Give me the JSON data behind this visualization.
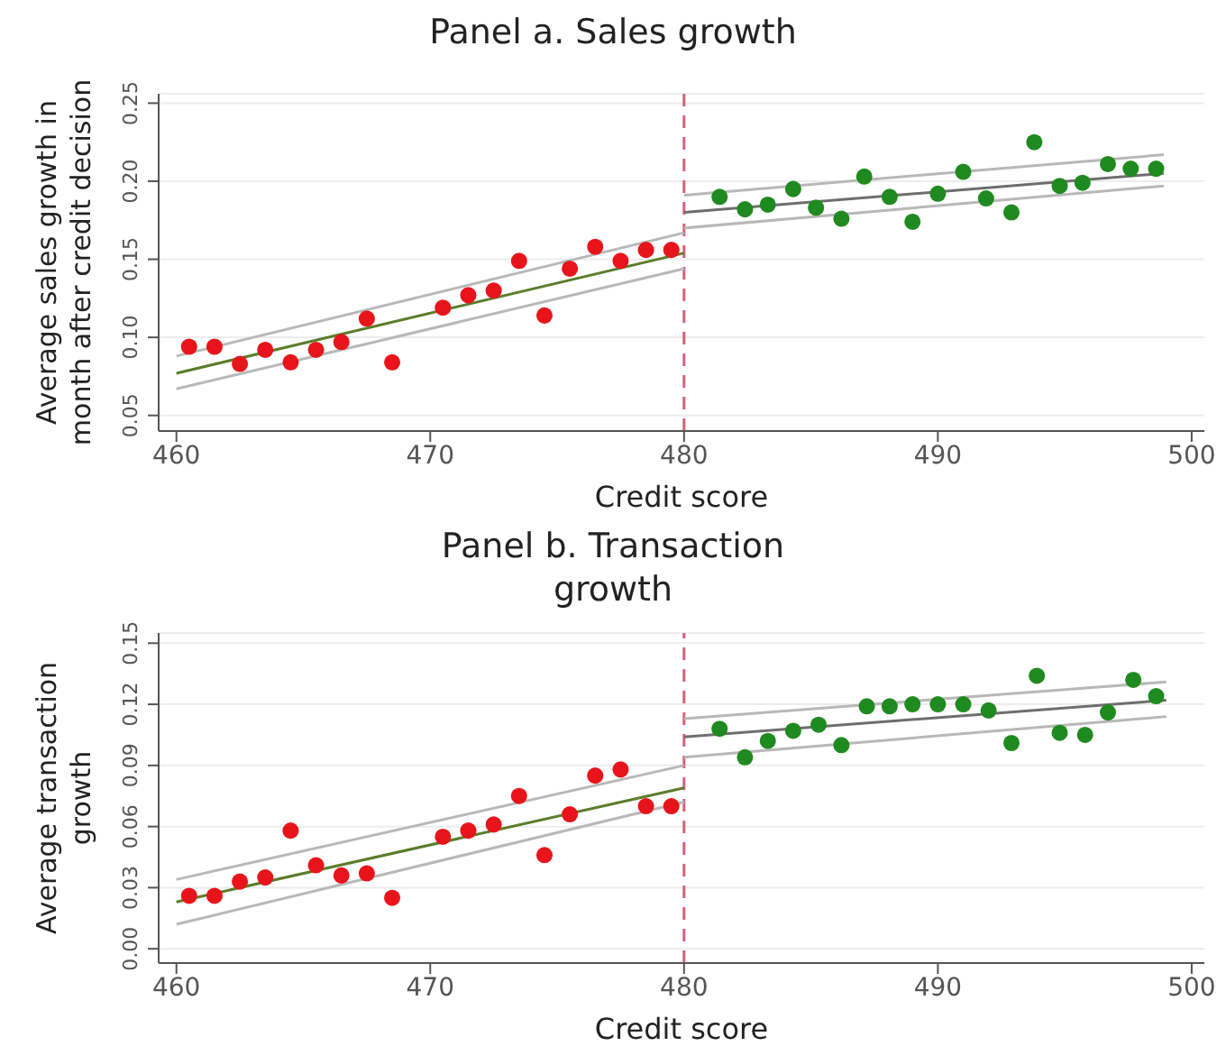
{
  "chart_data": [
    {
      "type": "scatter",
      "title": "Panel a. Sales growth",
      "xlabel": "Credit score",
      "ylabel": "Average sales growth in month after credit decision",
      "xlim": [
        459.3,
        500.5
      ],
      "xticks": [
        460,
        470,
        480,
        490,
        500
      ],
      "ylim": [
        0.04,
        0.256
      ],
      "yticks": [
        {
          "value": 0.05,
          "label": "0.05"
        },
        {
          "value": 0.1,
          "label": "0.10"
        },
        {
          "value": 0.15,
          "label": "0.15"
        },
        {
          "value": 0.2,
          "label": "0.20"
        },
        {
          "value": 0.25,
          "label": "0.25"
        }
      ],
      "grid": "y",
      "legend": false,
      "marker": "circle",
      "series": [
        {
          "color": "#e8141c",
          "x": [
            460.5,
            461.5,
            462.5,
            463.5,
            464.5,
            465.5,
            466.5,
            467.5,
            468.5,
            470.5,
            471.5,
            472.5,
            473.5,
            474.5,
            475.5,
            476.5,
            477.5,
            478.5,
            479.5
          ],
          "values": [
            0.094,
            0.094,
            0.083,
            0.092,
            0.084,
            0.092,
            0.097,
            0.112,
            0.084,
            0.119,
            0.127,
            0.13,
            0.149,
            0.114,
            0.144,
            0.158,
            0.149,
            0.156,
            0.156
          ]
        },
        {
          "color": "#1f8a1f",
          "x": [
            481.4,
            482.4,
            483.3,
            484.3,
            485.2,
            486.2,
            487.1,
            488.1,
            489.0,
            490.0,
            491.0,
            491.9,
            492.9,
            493.8,
            494.8,
            495.7,
            496.7,
            497.6,
            498.6
          ],
          "values": [
            0.19,
            0.182,
            0.185,
            0.195,
            0.183,
            0.176,
            0.203,
            0.19,
            0.174,
            0.192,
            0.206,
            0.189,
            0.18,
            0.225,
            0.197,
            0.199,
            0.211,
            0.208,
            0.208
          ]
        },
        {
          "type": "line",
          "marker": "none",
          "color": "#5a7d2a",
          "x": [
            460,
            480
          ],
          "values": [
            0.077,
            0.154
          ]
        },
        {
          "type": "line",
          "marker": "none",
          "color": "#b8b8b8",
          "x": [
            460,
            480
          ],
          "values": [
            0.088,
            0.167
          ]
        },
        {
          "type": "line",
          "marker": "none",
          "color": "#b8b8b8",
          "x": [
            460,
            480
          ],
          "values": [
            0.067,
            0.144
          ]
        },
        {
          "type": "line",
          "marker": "none",
          "color": "#6e6e6e",
          "x": [
            480,
            498.9
          ],
          "values": [
            0.18,
            0.205
          ]
        },
        {
          "type": "line",
          "marker": "none",
          "color": "#b8b8b8",
          "x": [
            480,
            498.9
          ],
          "values": [
            0.191,
            0.217
          ]
        },
        {
          "type": "line",
          "marker": "none",
          "color": "#b8b8b8",
          "x": [
            480,
            498.9
          ],
          "values": [
            0.17,
            0.197
          ]
        }
      ],
      "ref_lines": [
        {
          "axis": "x",
          "value": 480,
          "color": "#d9607a",
          "line_style": "dashed"
        }
      ]
    },
    {
      "type": "scatter",
      "title": "Panel b. Transaction growth",
      "xlabel": "Credit score",
      "ylabel": "Average transaction growth",
      "xlim": [
        459.3,
        500.5
      ],
      "xticks": [
        460,
        470,
        480,
        490,
        500
      ],
      "ylim": [
        -0.007,
        0.155
      ],
      "yticks": [
        {
          "value": 0,
          "label": "0.00"
        },
        {
          "value": 0.03,
          "label": "0.03"
        },
        {
          "value": 0.06,
          "label": "0.06"
        },
        {
          "value": 0.09,
          "label": "0.09"
        },
        {
          "value": 0.12,
          "label": "0.12"
        },
        {
          "value": 0.15,
          "label": "0.15"
        }
      ],
      "grid": "y",
      "legend": false,
      "marker": "circle",
      "series": [
        {
          "color": "#e8141c",
          "x": [
            460.5,
            461.5,
            462.5,
            463.5,
            464.5,
            465.5,
            466.5,
            467.5,
            468.5,
            470.5,
            471.5,
            472.5,
            473.5,
            474.5,
            475.5,
            476.5,
            477.5,
            478.5,
            479.5
          ],
          "values": [
            0.026,
            0.026,
            0.033,
            0.035,
            0.058,
            0.041,
            0.036,
            0.037,
            0.025,
            0.055,
            0.058,
            0.061,
            0.075,
            0.046,
            0.066,
            0.085,
            0.088,
            0.07,
            0.07
          ]
        },
        {
          "color": "#1f8a1f",
          "x": [
            481.4,
            482.4,
            483.3,
            484.3,
            485.3,
            486.2,
            487.2,
            488.1,
            489.0,
            490.0,
            491.0,
            492.0,
            492.9,
            493.9,
            494.8,
            495.8,
            496.7,
            497.7,
            498.6
          ],
          "values": [
            0.108,
            0.094,
            0.102,
            0.107,
            0.11,
            0.1,
            0.119,
            0.119,
            0.12,
            0.12,
            0.12,
            0.117,
            0.101,
            0.134,
            0.106,
            0.105,
            0.116,
            0.132,
            0.124
          ]
        },
        {
          "type": "line",
          "marker": "none",
          "color": "#5a7d2a",
          "x": [
            460,
            480
          ],
          "values": [
            0.023,
            0.079
          ]
        },
        {
          "type": "line",
          "marker": "none",
          "color": "#b8b8b8",
          "x": [
            460,
            480
          ],
          "values": [
            0.034,
            0.09
          ]
        },
        {
          "type": "line",
          "marker": "none",
          "color": "#b8b8b8",
          "x": [
            460,
            480
          ],
          "values": [
            0.012,
            0.072
          ]
        },
        {
          "type": "line",
          "marker": "none",
          "color": "#6e6e6e",
          "x": [
            480,
            499
          ],
          "values": [
            0.104,
            0.122
          ]
        },
        {
          "type": "line",
          "marker": "none",
          "color": "#b8b8b8",
          "x": [
            480,
            499
          ],
          "values": [
            0.113,
            0.131
          ]
        },
        {
          "type": "line",
          "marker": "none",
          "color": "#b8b8b8",
          "x": [
            480,
            499
          ],
          "values": [
            0.094,
            0.114
          ]
        }
      ],
      "ref_lines": [
        {
          "axis": "x",
          "value": 480,
          "color": "#d9607a",
          "line_style": "dashed"
        }
      ]
    }
  ]
}
